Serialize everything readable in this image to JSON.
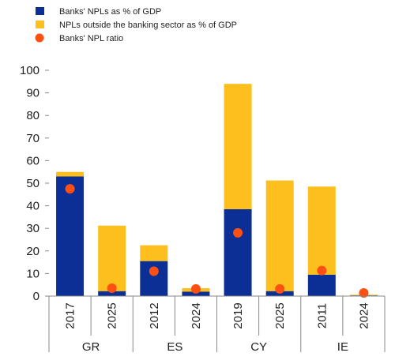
{
  "chart_data": {
    "type": "bar",
    "stacked": true,
    "title": "",
    "xlabel": "",
    "ylabel": "",
    "ylim": [
      0,
      100
    ],
    "yticks": [
      0,
      10,
      20,
      30,
      40,
      50,
      60,
      70,
      80,
      90,
      100
    ],
    "grid": false,
    "legend_position": "top-left",
    "groups": [
      {
        "label": "GR",
        "categories": [
          "2017",
          "2025"
        ]
      },
      {
        "label": "ES",
        "categories": [
          "2012",
          "2024"
        ]
      },
      {
        "label": "CY",
        "categories": [
          "2019",
          "2025"
        ]
      },
      {
        "label": "IE",
        "categories": [
          "2011",
          "2024"
        ]
      }
    ],
    "categories": [
      "2017",
      "2025",
      "2012",
      "2024",
      "2019",
      "2025",
      "2011",
      "2024"
    ],
    "series": [
      {
        "name": "Banks' NPLs as % of GDP",
        "kind": "bar",
        "color": "#0b2f94",
        "values": [
          53,
          2.2,
          15.5,
          2,
          38.5,
          2.2,
          9.5,
          0.3
        ]
      },
      {
        "name": "NPLs outside the banking sector as % of GDP",
        "kind": "bar",
        "color": "#fcbf1d",
        "values": [
          2,
          29,
          7,
          1.5,
          55.5,
          49,
          39,
          0.3
        ]
      },
      {
        "name": "Banks' NPL ratio",
        "kind": "marker",
        "color": "#ff4f12",
        "values": [
          47.5,
          3.5,
          11,
          3.2,
          28,
          3.2,
          11.3,
          1.4
        ]
      }
    ]
  }
}
